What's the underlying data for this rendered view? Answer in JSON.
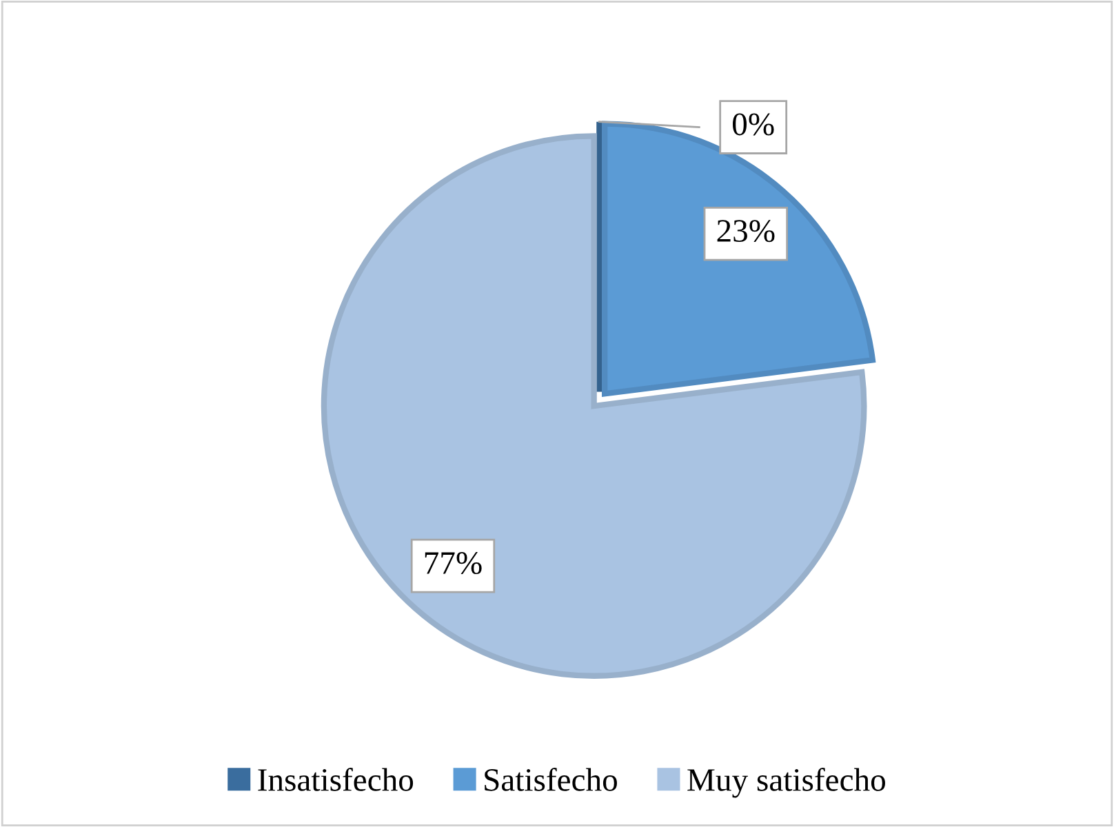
{
  "chart_data": {
    "type": "pie",
    "categories": [
      "Insatisfecho",
      "Satisfecho",
      "Muy satisfecho"
    ],
    "values": [
      0,
      23,
      77
    ],
    "colors": [
      "#3a6d9e",
      "#5b9bd5",
      "#a9c3e2"
    ],
    "value_labels": [
      "0%",
      "23%",
      "77%"
    ],
    "legend": "bottom"
  }
}
